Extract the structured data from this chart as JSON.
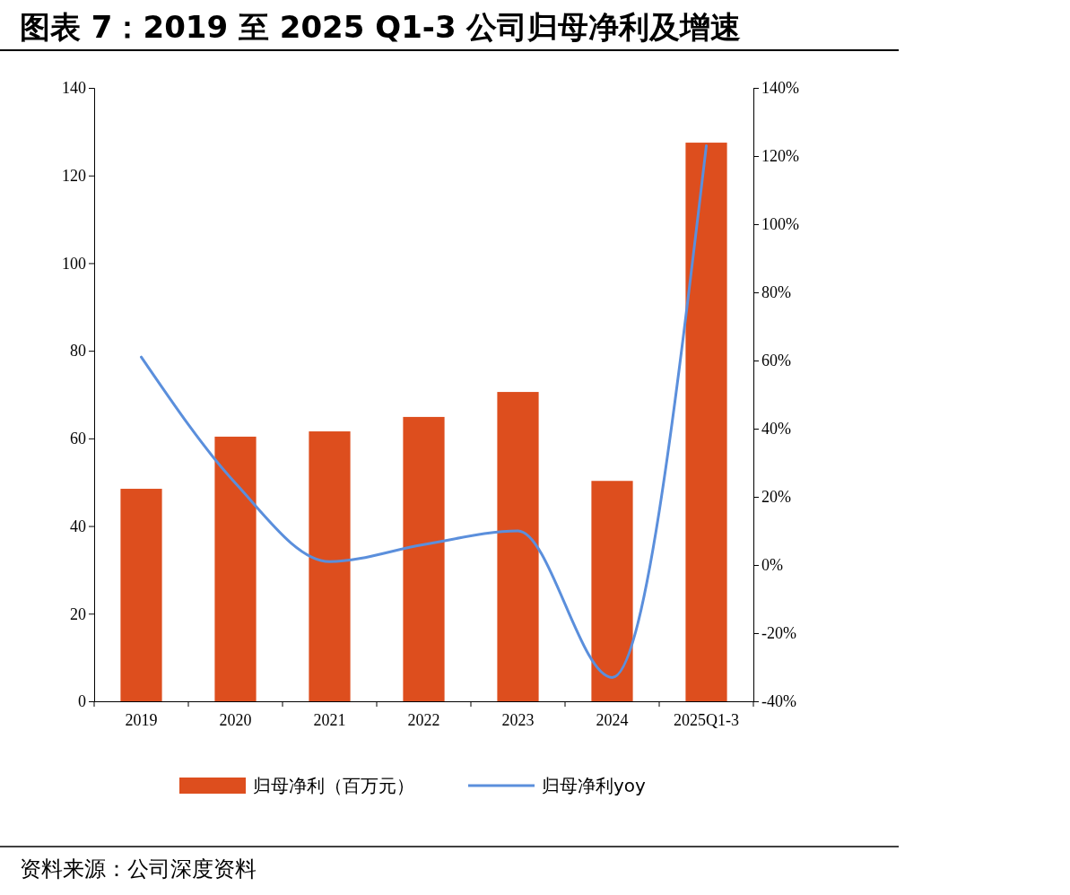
{
  "chart_data": {
    "type": "bar",
    "title": "图表 7：2019 至 2025 Q1-3 公司归母净利及增速",
    "categories": [
      "2019",
      "2020",
      "2021",
      "2022",
      "2023",
      "2024",
      "2025Q1-3"
    ],
    "series": [
      {
        "name": "归母净利（百万元）",
        "color": "#dd4e1e",
        "values": [
          48.5,
          60.4,
          61.6,
          64.9,
          70.6,
          50.3,
          127.5
        ]
      },
      {
        "name": "归母净利yoy",
        "type": "line",
        "axis": "y2",
        "color": "#5b8fdc",
        "values": [
          61,
          24,
          1,
          6,
          10,
          -33,
          123
        ]
      }
    ],
    "ylim": [
      0,
      140
    ],
    "yticks": [
      0,
      20,
      40,
      60,
      80,
      100,
      120,
      140
    ],
    "y2lim": [
      -40,
      140
    ],
    "y2ticks": [
      {
        "value": -40,
        "label": "-40%"
      },
      {
        "value": -20,
        "label": "-20%"
      },
      {
        "value": 0,
        "label": "0%"
      },
      {
        "value": 20,
        "label": "20%"
      },
      {
        "value": 40,
        "label": "40%"
      },
      {
        "value": 60,
        "label": "60%"
      },
      {
        "value": 80,
        "label": "80%"
      },
      {
        "value": 100,
        "label": "100%"
      },
      {
        "value": 120,
        "label": "120%"
      },
      {
        "value": 140,
        "label": "140%"
      }
    ],
    "grid": false,
    "legend": "bottom",
    "marker": "none",
    "line_style": "solid",
    "annotations": [
      "资料来源：公司深度资料"
    ]
  }
}
